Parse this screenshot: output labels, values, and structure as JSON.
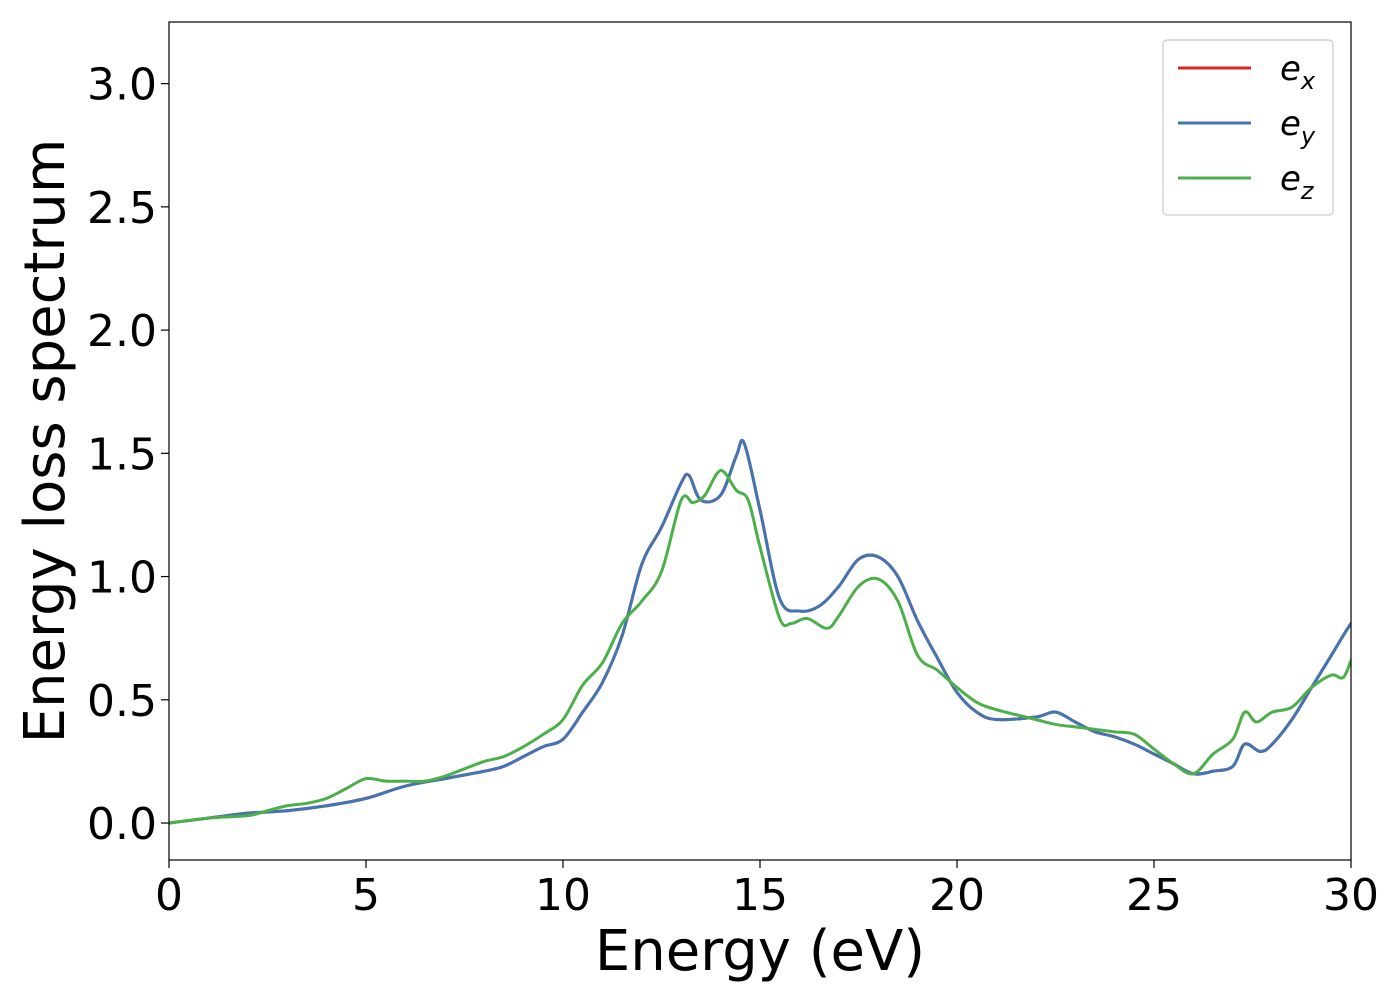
{
  "chart_data": {
    "type": "line",
    "title": "",
    "xlabel": "Energy (eV)",
    "ylabel": "Energy loss spectrum",
    "xlim": [
      0,
      30
    ],
    "ylim": [
      -0.15,
      3.25
    ],
    "xticks": [
      0,
      5,
      10,
      15,
      20,
      25,
      30
    ],
    "xtick_labels": [
      "0",
      "5",
      "10",
      "15",
      "20",
      "25",
      "30"
    ],
    "yticks": [
      0.0,
      0.5,
      1.0,
      1.5,
      2.0,
      2.5,
      3.0
    ],
    "ytick_labels": [
      "0.0",
      "0.5",
      "1.0",
      "1.5",
      "2.0",
      "2.5",
      "3.0"
    ],
    "grid": false,
    "legend_position": "top-right",
    "series": [
      {
        "name": "e_x",
        "label_base": "e",
        "label_sub": "x",
        "color": "#d62728",
        "x": [
          0,
          1,
          2,
          3,
          4,
          5,
          6,
          7,
          8,
          8.5,
          9,
          9.5,
          10,
          10.5,
          11,
          11.5,
          12,
          12.5,
          13,
          13.2,
          13.5,
          14,
          14.4,
          14.6,
          15,
          15.5,
          16,
          16.5,
          17,
          17.5,
          18,
          18.5,
          19,
          19.5,
          20,
          20.5,
          21,
          22,
          22.5,
          23,
          23.5,
          24,
          24.5,
          25,
          25.5,
          26,
          26.5,
          27,
          27.3,
          27.7,
          28,
          28.5,
          29,
          29.5,
          29.8,
          30
        ],
        "values": [
          0.0,
          0.02,
          0.04,
          0.05,
          0.07,
          0.1,
          0.15,
          0.18,
          0.21,
          0.23,
          0.27,
          0.31,
          0.34,
          0.45,
          0.57,
          0.76,
          1.05,
          1.2,
          1.38,
          1.41,
          1.31,
          1.33,
          1.49,
          1.54,
          1.27,
          0.91,
          0.86,
          0.88,
          0.96,
          1.07,
          1.08,
          1.0,
          0.82,
          0.67,
          0.53,
          0.45,
          0.42,
          0.43,
          0.45,
          0.41,
          0.37,
          0.35,
          0.32,
          0.28,
          0.24,
          0.2,
          0.21,
          0.23,
          0.32,
          0.29,
          0.32,
          0.42,
          0.55,
          0.68,
          0.76,
          0.81
        ]
      },
      {
        "name": "e_y",
        "label_base": "e",
        "label_sub": "y",
        "color": "#4375b2",
        "x": [
          0,
          1,
          2,
          3,
          4,
          5,
          6,
          7,
          8,
          8.5,
          9,
          9.5,
          10,
          10.5,
          11,
          11.5,
          12,
          12.5,
          13,
          13.2,
          13.5,
          14,
          14.4,
          14.6,
          15,
          15.5,
          16,
          16.5,
          17,
          17.5,
          18,
          18.5,
          19,
          19.5,
          20,
          20.5,
          21,
          22,
          22.5,
          23,
          23.5,
          24,
          24.5,
          25,
          25.5,
          26,
          26.5,
          27,
          27.3,
          27.7,
          28,
          28.5,
          29,
          29.5,
          29.8,
          30
        ],
        "values": [
          0.0,
          0.02,
          0.04,
          0.05,
          0.07,
          0.1,
          0.15,
          0.18,
          0.21,
          0.23,
          0.27,
          0.31,
          0.34,
          0.45,
          0.57,
          0.76,
          1.05,
          1.2,
          1.38,
          1.41,
          1.31,
          1.33,
          1.49,
          1.54,
          1.27,
          0.91,
          0.86,
          0.88,
          0.96,
          1.07,
          1.08,
          1.0,
          0.82,
          0.67,
          0.53,
          0.45,
          0.42,
          0.43,
          0.45,
          0.41,
          0.37,
          0.35,
          0.32,
          0.28,
          0.24,
          0.2,
          0.21,
          0.23,
          0.32,
          0.29,
          0.32,
          0.42,
          0.55,
          0.68,
          0.76,
          0.81
        ]
      },
      {
        "name": "e_z",
        "label_base": "e",
        "label_sub": "z",
        "color": "#4daf4a",
        "x": [
          0,
          1,
          2,
          2.5,
          3,
          3.5,
          4,
          4.5,
          5,
          5.5,
          6,
          6.5,
          7,
          7.5,
          8,
          8.5,
          9,
          9.5,
          10,
          10.5,
          11,
          11.5,
          12,
          12.5,
          13,
          13.3,
          13.6,
          14,
          14.4,
          14.7,
          15,
          15.5,
          15.8,
          16.2,
          16.7,
          17,
          17.5,
          18,
          18.5,
          19,
          19.5,
          20,
          20.5,
          21,
          22,
          22.5,
          23,
          23.5,
          24,
          24.5,
          25,
          25.5,
          26,
          26.5,
          27,
          27.3,
          27.6,
          28,
          28.5,
          29,
          29.5,
          29.8,
          30
        ],
        "values": [
          0.0,
          0.02,
          0.03,
          0.05,
          0.07,
          0.08,
          0.1,
          0.14,
          0.18,
          0.17,
          0.17,
          0.17,
          0.19,
          0.22,
          0.25,
          0.27,
          0.31,
          0.36,
          0.42,
          0.56,
          0.65,
          0.81,
          0.9,
          1.02,
          1.31,
          1.3,
          1.33,
          1.43,
          1.35,
          1.31,
          1.12,
          0.83,
          0.81,
          0.83,
          0.79,
          0.84,
          0.96,
          0.99,
          0.9,
          0.68,
          0.62,
          0.55,
          0.49,
          0.46,
          0.42,
          0.4,
          0.39,
          0.38,
          0.37,
          0.36,
          0.3,
          0.24,
          0.2,
          0.28,
          0.34,
          0.45,
          0.41,
          0.45,
          0.47,
          0.55,
          0.6,
          0.59,
          0.66
        ]
      }
    ]
  }
}
